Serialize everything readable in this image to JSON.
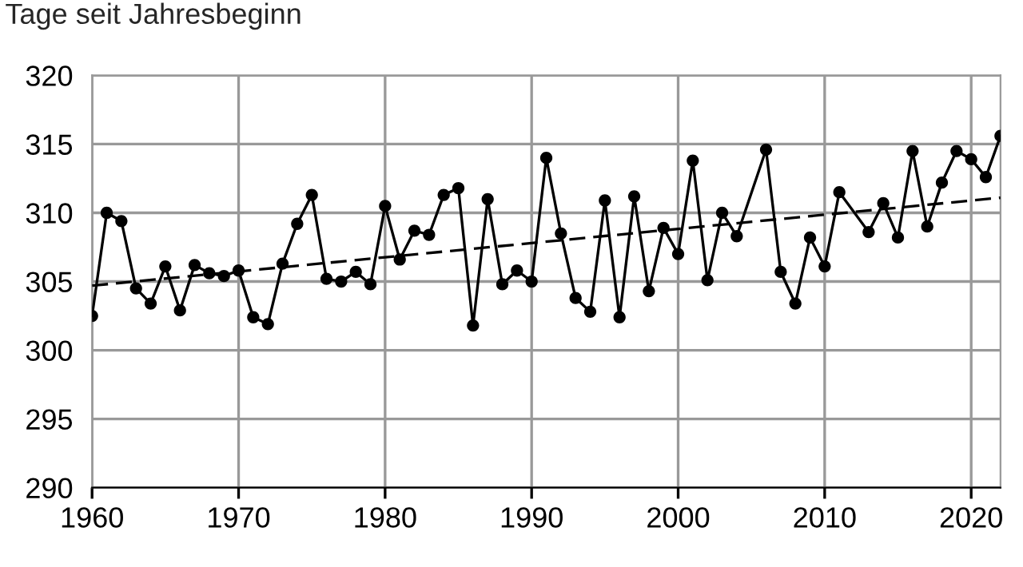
{
  "chart_data": {
    "type": "line",
    "ylabel": "Tage seit Jahresbeginn",
    "xlim": [
      1960,
      2022
    ],
    "xticks": [
      1960,
      1970,
      1980,
      1990,
      2000,
      2010,
      2020
    ],
    "ylim": [
      290,
      320
    ],
    "yticks": [
      290,
      295,
      300,
      305,
      310,
      315,
      320
    ],
    "grid": true,
    "legend": false,
    "series": [
      {
        "color": "#000000",
        "marker": "circle",
        "line_style": "solid",
        "x": [
          1960,
          1961,
          1962,
          1963,
          1964,
          1965,
          1966,
          1967,
          1968,
          1969,
          1970,
          1971,
          1972,
          1973,
          1974,
          1975,
          1976,
          1977,
          1978,
          1979,
          1980,
          1981,
          1982,
          1983,
          1984,
          1985,
          1986,
          1987,
          1988,
          1989,
          1990,
          1991,
          1992,
          1993,
          1994,
          1995,
          1996,
          1997,
          1998,
          1999,
          2000,
          2001,
          2002,
          2003,
          2004,
          2006,
          2007,
          2008,
          2009,
          2010,
          2011,
          2013,
          2014,
          2015,
          2016,
          2017,
          2018,
          2019,
          2020,
          2021,
          2022
        ],
        "values": [
          302.5,
          310.0,
          309.4,
          304.5,
          303.4,
          306.1,
          302.9,
          306.2,
          305.6,
          305.4,
          305.8,
          302.4,
          301.9,
          306.3,
          309.2,
          311.3,
          305.2,
          305.0,
          305.7,
          304.8,
          310.5,
          306.6,
          308.7,
          308.4,
          311.3,
          311.8,
          301.8,
          311.0,
          304.8,
          305.8,
          305.0,
          314.0,
          308.5,
          303.8,
          302.8,
          310.9,
          302.4,
          311.2,
          304.3,
          308.9,
          307.0,
          313.8,
          305.1,
          310.0,
          308.3,
          314.6,
          305.7,
          303.4,
          308.2,
          306.1,
          311.5,
          308.6,
          310.7,
          308.2,
          314.5,
          309.0,
          312.2,
          314.5,
          313.9,
          312.6,
          315.6
        ]
      },
      {
        "color": "#000000",
        "marker": "none",
        "line_style": "dashed",
        "x": [
          1960,
          2022
        ],
        "values": [
          304.7,
          311.1
        ]
      }
    ]
  }
}
